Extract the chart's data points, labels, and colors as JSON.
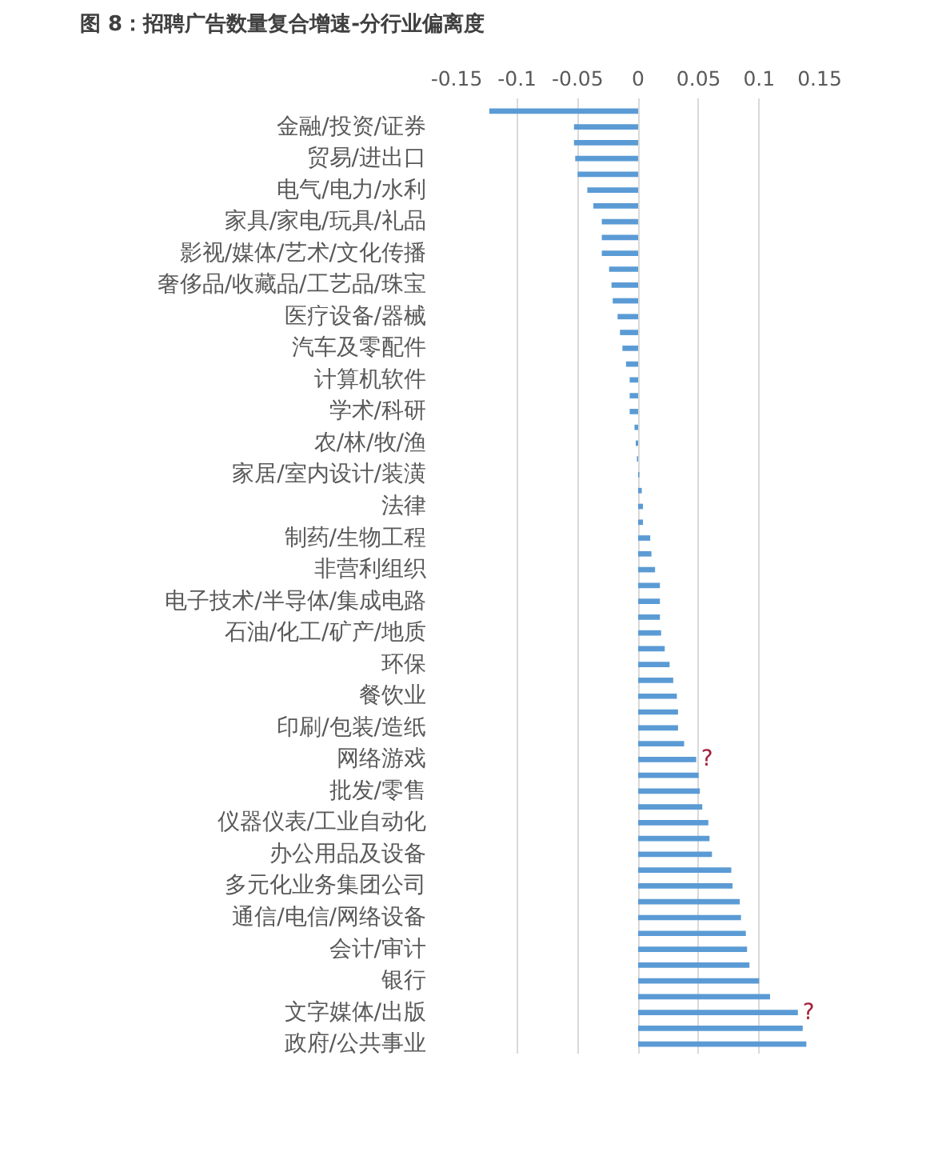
{
  "chart_data": {
    "type": "bar",
    "orientation": "horizontal",
    "title": "图 8：招聘广告数量复合增速-分行业偏离度",
    "categories": [
      null,
      "金融/投资/证券",
      null,
      "贸易/进出口",
      null,
      "电气/电力/水利",
      null,
      "家具/家电/玩具/礼品",
      null,
      "影视/媒体/艺术/文化传播",
      null,
      "奢侈品/收藏品/工艺品/珠宝",
      null,
      "医疗设备/器械",
      null,
      "汽车及零配件",
      null,
      "计算机软件",
      null,
      "学术/科研",
      null,
      "农/林/牧/渔",
      null,
      "家居/室内设计/装潢",
      null,
      "法律",
      null,
      "制药/生物工程",
      null,
      "非营利组织",
      null,
      "电子技术/半导体/集成电路",
      null,
      "石油/化工/矿产/地质",
      null,
      "环保",
      null,
      "餐饮业",
      null,
      "印刷/包装/造纸",
      null,
      "网络游戏",
      null,
      "批发/零售",
      null,
      "仪器仪表/工业自动化",
      null,
      "办公用品及设备",
      null,
      "多元化业务集团公司",
      null,
      "通信/电信/网络设备",
      null,
      "会计/审计",
      null,
      "银行",
      null,
      "文字媒体/出版",
      null,
      "政府/公共事业"
    ],
    "values": [
      -0.123,
      -0.053,
      -0.053,
      -0.052,
      -0.05,
      -0.042,
      -0.037,
      -0.03,
      -0.03,
      -0.03,
      -0.024,
      -0.022,
      -0.021,
      -0.017,
      -0.015,
      -0.013,
      -0.01,
      -0.007,
      -0.007,
      -0.007,
      -0.003,
      -0.002,
      -0.001,
      0.001,
      0.003,
      0.004,
      0.004,
      0.01,
      0.011,
      0.014,
      0.018,
      0.018,
      0.018,
      0.019,
      0.022,
      0.026,
      0.029,
      0.032,
      0.033,
      0.033,
      0.038,
      0.048,
      0.05,
      0.051,
      0.053,
      0.058,
      0.059,
      0.061,
      0.077,
      0.078,
      0.084,
      0.085,
      0.089,
      0.09,
      0.092,
      0.1,
      0.109,
      0.132,
      0.136,
      0.139
    ],
    "color": "#5b9bd5",
    "xlim": [
      -0.15,
      0.15
    ],
    "xticks": [
      -0.15,
      -0.1,
      -0.05,
      0,
      0.05,
      0.1,
      0.15
    ],
    "grid": "x",
    "annotations": [
      {
        "text": "?",
        "x": 0.048,
        "y": "网络游戏"
      },
      {
        "text": "?",
        "x": 0.132,
        "y": "文字媒体/出版"
      }
    ]
  }
}
